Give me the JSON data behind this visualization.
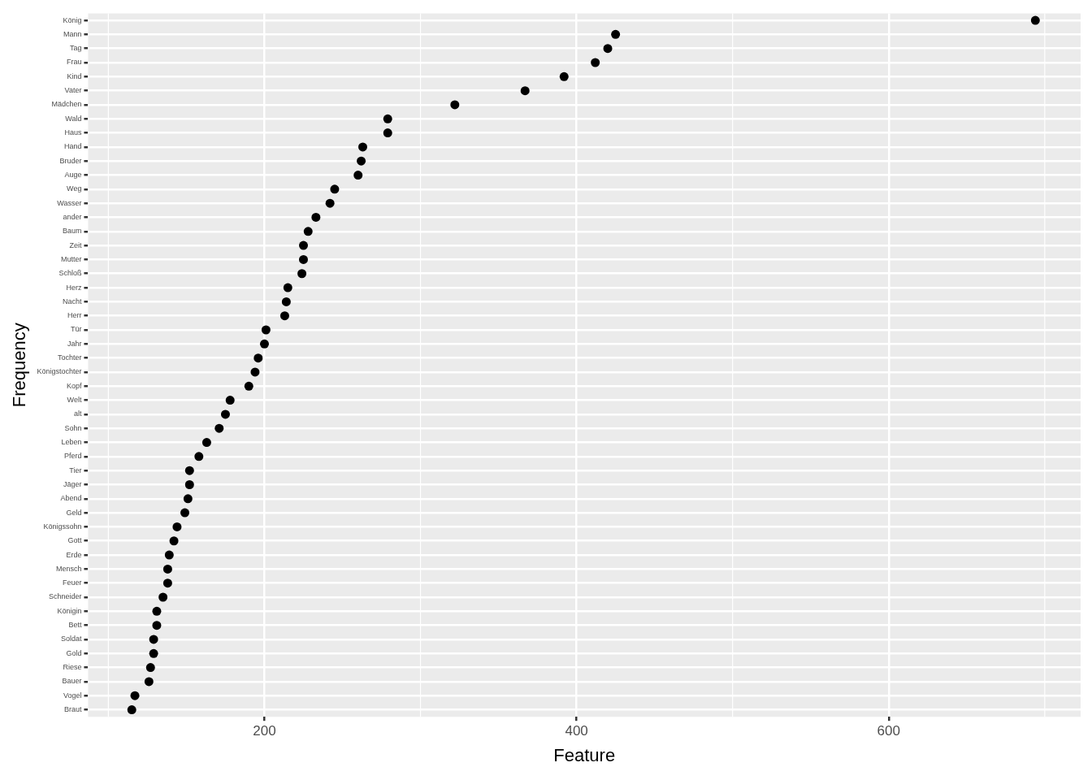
{
  "chart_data": {
    "type": "scatter",
    "orientation": "horizontal",
    "xlabel": "Feature",
    "ylabel": "Frequency",
    "categories": [
      "König",
      "Mann",
      "Tag",
      "Frau",
      "Kind",
      "Vater",
      "Mädchen",
      "Wald",
      "Haus",
      "Hand",
      "Bruder",
      "Auge",
      "Weg",
      "Wasser",
      "ander",
      "Baum",
      "Zeit",
      "Mutter",
      "Schloß",
      "Herz",
      "Nacht",
      "Herr",
      "Tür",
      "Jahr",
      "Tochter",
      "Königstochter",
      "Kopf",
      "Welt",
      "alt",
      "Sohn",
      "Leben",
      "Pferd",
      "Tier",
      "Jäger",
      "Abend",
      "Geld",
      "Königssohn",
      "Gott",
      "Erde",
      "Mensch",
      "Feuer",
      "Schneider",
      "Königin",
      "Bett",
      "Soldat",
      "Gold",
      "Riese",
      "Bauer",
      "Vogel",
      "Braut"
    ],
    "values": [
      694,
      425,
      420,
      412,
      392,
      367,
      322,
      279,
      279,
      263,
      262,
      260,
      245,
      242,
      233,
      228,
      225,
      225,
      224,
      215,
      214,
      213,
      201,
      200,
      196,
      194,
      190,
      178,
      175,
      171,
      163,
      158,
      152,
      152,
      151,
      149,
      144,
      142,
      139,
      138,
      138,
      135,
      131,
      131,
      129,
      129,
      127,
      126,
      117,
      115
    ],
    "color": "#000000",
    "marker": "circle",
    "xlim": [
      87,
      723
    ],
    "xticks": [
      200,
      400,
      600
    ],
    "grid": true
  }
}
